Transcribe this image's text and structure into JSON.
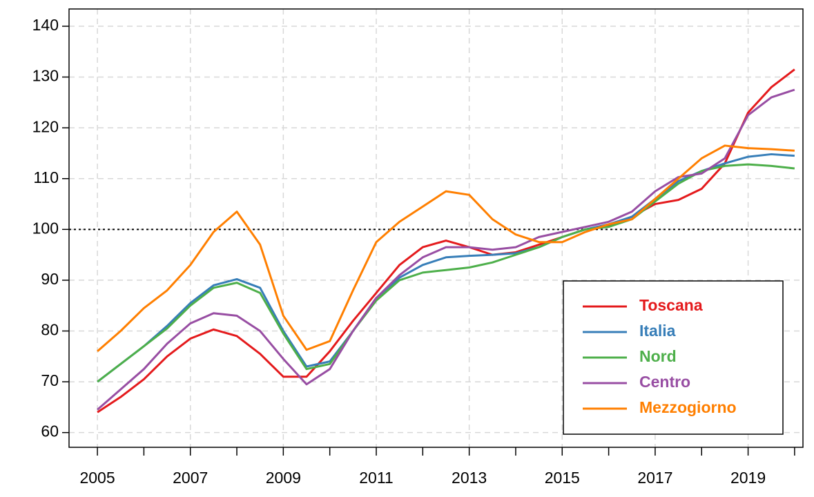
{
  "chart_data": {
    "type": "line",
    "x": [
      2005,
      2005.5,
      2006,
      2006.5,
      2007,
      2007.5,
      2008,
      2008.5,
      2009,
      2009.5,
      2010,
      2010.5,
      2011,
      2011.5,
      2012,
      2012.5,
      2013,
      2013.5,
      2014,
      2014.5,
      2015,
      2015.5,
      2016,
      2016.5,
      2017,
      2017.5,
      2018,
      2018.5,
      2019,
      2019.5,
      2020
    ],
    "series": [
      {
        "name": "Toscana",
        "color": "#e41a1c",
        "values": [
          64,
          67,
          70.5,
          75,
          78.5,
          80.3,
          79,
          75.5,
          71,
          71,
          76,
          82,
          87.5,
          93,
          96.5,
          97.8,
          96.5,
          95,
          95.5,
          97,
          98.5,
          100,
          100.8,
          102.5,
          105,
          105.8,
          108,
          113,
          123,
          128,
          131.5
        ]
      },
      {
        "name": "Italia",
        "color": "#377eb8",
        "values": [
          70,
          73.5,
          77,
          81,
          85.5,
          89,
          90.2,
          88.5,
          80,
          73,
          74,
          80,
          86.5,
          90.5,
          93,
          94.5,
          94.8,
          95,
          95.3,
          96.5,
          98.5,
          100,
          101,
          102.5,
          106,
          109.5,
          111.5,
          113,
          114.3,
          114.8,
          114.5
        ]
      },
      {
        "name": "Nord",
        "color": "#4daf4a",
        "values": [
          70,
          73.5,
          77,
          80.5,
          85,
          88.5,
          89.5,
          87.5,
          79.5,
          72.5,
          73.5,
          80,
          86,
          90,
          91.5,
          92,
          92.5,
          93.5,
          95,
          96.5,
          98.5,
          100,
          100.5,
          102,
          105.5,
          109,
          111.5,
          112.5,
          112.8,
          112.5,
          112
        ]
      },
      {
        "name": "Centro",
        "color": "#984ea3",
        "values": [
          64.5,
          68.5,
          72.5,
          77.5,
          81.5,
          83.5,
          83,
          80,
          74.5,
          69.5,
          72.5,
          80,
          86.5,
          91,
          94.5,
          96.5,
          96.5,
          96,
          96.5,
          98.5,
          99.5,
          100.5,
          101.5,
          103.5,
          107.5,
          110.3,
          111,
          114,
          122.5,
          126,
          127.5
        ]
      },
      {
        "name": "Mezzogiorno",
        "color": "#ff7f00",
        "values": [
          76,
          80,
          84.5,
          88,
          93,
          99.5,
          103.5,
          97,
          83,
          76.3,
          78,
          88,
          97.5,
          101.5,
          104.5,
          107.5,
          106.8,
          102,
          99,
          97.5,
          97.5,
          99.5,
          101,
          102,
          106,
          110,
          114,
          116.5,
          116,
          115.8,
          115.5
        ]
      }
    ],
    "xlim": [
      2004.39,
      2020.18
    ],
    "xticks": [
      2005,
      {
        "value": 2006,
        "label": null
      },
      2007,
      {
        "value": 2008,
        "label": null
      },
      2009,
      {
        "value": 2010,
        "label": null
      },
      2011,
      {
        "value": 2012,
        "label": null
      },
      2013,
      {
        "value": 2014,
        "label": null
      },
      2015,
      {
        "value": 2016,
        "label": null
      },
      2017,
      {
        "value": 2018,
        "label": null
      },
      2019,
      {
        "value": 2020,
        "label": null
      }
    ],
    "ylim": [
      57.1,
      143.4
    ],
    "yticks": [
      60,
      70,
      80,
      90,
      100,
      110,
      120,
      130,
      140
    ],
    "reference_line": 100,
    "grid": true,
    "legend": "bottom-right"
  }
}
